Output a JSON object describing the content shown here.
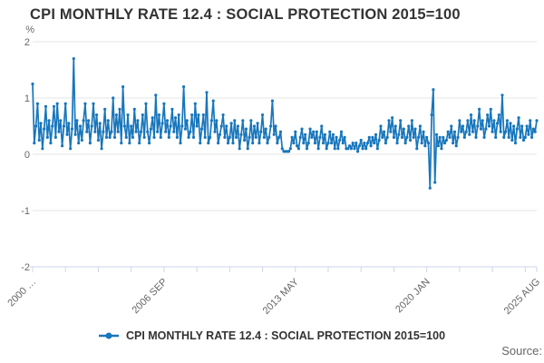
{
  "header": {
    "title": "CPI MONTHLY RATE 12.4 : SOCIAL PROTECTION 2015=100"
  },
  "legend": {
    "label": "CPI MONTHLY RATE 12.4 : SOCIAL PROTECTION 2015=100"
  },
  "footer": {
    "source_label": "Source:"
  },
  "colors": {
    "line": "#1876bc",
    "grid": "#e6e6e6",
    "axis": "#ccd6eb",
    "tick_text": "#666666",
    "title_text": "#333333"
  },
  "chart_data": {
    "type": "line",
    "title": "CPI MONTHLY RATE 12.4 : SOCIAL PROTECTION 2015=100",
    "unit_label": "%",
    "xlabel": "",
    "ylabel": "%",
    "ylim": [
      -2,
      2
    ],
    "yticks": [
      2,
      1,
      0,
      -1,
      -2
    ],
    "grid": true,
    "legend_position": "bottom",
    "x_start": "2000 JAN",
    "x_end": "2025 AUG",
    "frequency": "monthly",
    "xtick_labels": [
      {
        "month_index": 0,
        "label": "2000 …"
      },
      {
        "month_index": 80,
        "label": "2006 SEP"
      },
      {
        "month_index": 160,
        "label": "2013 MAY"
      },
      {
        "month_index": 240,
        "label": "2020 JAN"
      },
      {
        "month_index": 307,
        "label": "2025 AUG"
      }
    ],
    "minor_tick_every_months": 20,
    "series": [
      {
        "name": "CPI MONTHLY RATE 12.4 : SOCIAL PROTECTION 2015=100",
        "color": "#1876bc",
        "values": [
          1.25,
          0.2,
          0.5,
          0.9,
          0.25,
          0.55,
          0.1,
          0.45,
          0.85,
          0.3,
          0.6,
          0.2,
          0.5,
          0.85,
          0.3,
          0.9,
          0.4,
          0.6,
          0.15,
          0.5,
          0.9,
          0.35,
          0.55,
          0.1,
          0.45,
          1.7,
          0.35,
          0.6,
          0.2,
          0.5,
          0.25,
          0.6,
          0.9,
          0.4,
          0.6,
          0.2,
          0.5,
          0.9,
          0.4,
          0.7,
          0.25,
          0.55,
          0.1,
          0.4,
          0.8,
          0.3,
          0.6,
          0.3,
          0.4,
          1.0,
          0.3,
          0.7,
          0.4,
          0.8,
          0.2,
          1.2,
          0.5,
          0.3,
          0.7,
          0.2,
          0.5,
          0.3,
          0.8,
          0.4,
          0.6,
          0.2,
          0.4,
          0.7,
          0.3,
          0.9,
          0.4,
          0.2,
          0.45,
          0.65,
          0.3,
          1.05,
          0.4,
          0.7,
          0.3,
          0.55,
          0.9,
          0.4,
          0.6,
          0.3,
          0.5,
          0.8,
          0.4,
          0.65,
          0.3,
          0.7,
          0.2,
          0.5,
          1.2,
          0.45,
          0.6,
          0.3,
          0.4,
          0.7,
          0.3,
          0.9,
          0.5,
          0.7,
          0.2,
          0.45,
          0.7,
          0.3,
          1.1,
          0.2,
          0.3,
          0.6,
          0.95,
          0.4,
          0.6,
          0.2,
          0.35,
          0.5,
          0.7,
          0.3,
          0.5,
          0.2,
          0.3,
          0.55,
          0.2,
          0.6,
          0.3,
          0.5,
          0.1,
          0.35,
          0.6,
          0.25,
          0.45,
          0.1,
          0.3,
          0.6,
          0.2,
          0.5,
          0.3,
          0.55,
          0.2,
          0.4,
          0.7,
          0.3,
          0.45,
          0.2,
          0.3,
          0.5,
          0.95,
          0.35,
          0.5,
          0.2,
          0.3,
          0.4,
          0.1,
          0.05,
          0.05,
          0.05,
          0.05,
          0.1,
          0.3,
          0.2,
          0.4,
          0.15,
          0.1,
          0.3,
          0.45,
          0.2,
          0.35,
          0.1,
          0.2,
          0.45,
          0.3,
          0.4,
          0.2,
          0.4,
          0.1,
          0.3,
          0.5,
          0.2,
          0.35,
          0.1,
          0.2,
          0.4,
          0.2,
          0.35,
          0.1,
          0.3,
          0.1,
          0.25,
          0.4,
          0.2,
          0.3,
          0.1,
          0.1,
          0.15,
          0.1,
          0.2,
          0.1,
          0.2,
          0.05,
          0.15,
          0.25,
          0.1,
          0.2,
          0.1,
          0.2,
          0.3,
          0.15,
          0.3,
          0.2,
          0.35,
          0.1,
          0.25,
          0.5,
          0.3,
          0.4,
          0.2,
          0.3,
          0.6,
          0.4,
          0.65,
          0.3,
          0.5,
          0.2,
          0.35,
          0.6,
          0.3,
          0.45,
          0.2,
          0.3,
          0.5,
          0.25,
          0.6,
          0.3,
          0.45,
          0.1,
          0.3,
          0.5,
          0.2,
          0.4,
          0.15,
          0.3,
          0.2,
          -0.6,
          0.7,
          1.15,
          -0.5,
          0.35,
          0.15,
          0.3,
          0.1,
          0.3,
          0.2,
          0.25,
          0.4,
          0.3,
          0.5,
          0.2,
          0.4,
          0.15,
          0.3,
          0.6,
          0.4,
          0.5,
          0.3,
          0.4,
          0.6,
          0.35,
          0.7,
          0.4,
          0.6,
          0.3,
          0.5,
          0.8,
          0.45,
          0.6,
          0.3,
          0.45,
          0.7,
          0.5,
          0.8,
          0.4,
          0.6,
          0.3,
          0.55,
          0.7,
          0.4,
          1.05,
          0.3,
          0.4,
          0.6,
          0.3,
          0.55,
          0.25,
          0.5,
          0.2,
          0.45,
          0.65,
          0.3,
          0.5,
          0.25,
          0.3,
          0.5,
          0.35,
          0.6,
          0.3,
          0.45,
          0.4,
          0.6
        ]
      }
    ]
  }
}
